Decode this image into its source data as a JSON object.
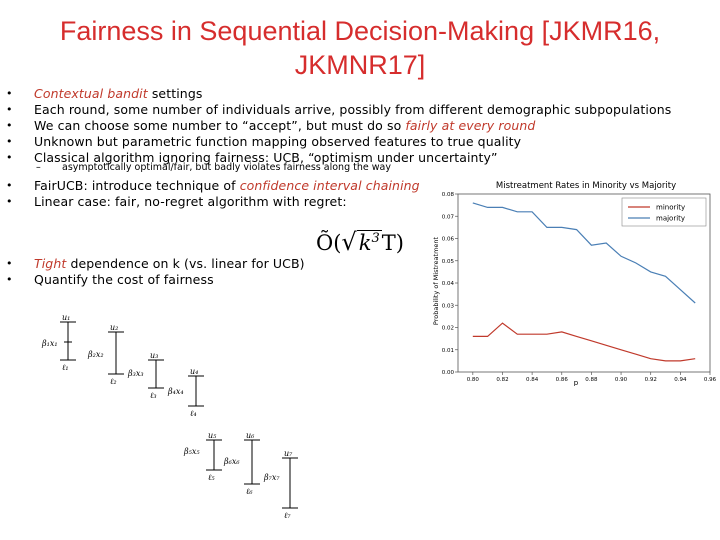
{
  "slide": {
    "title": "Fairness in Sequential Decision-Making [JKMR16, JKMNR17]",
    "bullets": [
      {
        "pre": "",
        "red": "Contextual bandit",
        "post": " settings"
      },
      {
        "pre": "Each round, some number of individuals arrive, possibly from different demographic subpopulations",
        "red": "",
        "post": ""
      },
      {
        "pre": "We can choose some number to “accept”, but must do so ",
        "red": "fairly at every round",
        "post": ""
      },
      {
        "pre": "Unknown but parametric function mapping observed features to true quality",
        "red": "",
        "post": ""
      },
      {
        "pre": "Classical algorithm ignoring fairness: UCB, “optimism under uncertainty”",
        "red": "",
        "post": ""
      }
    ],
    "sub_bullet": "asymptotically optimal/fair, but badly violates fairness along the way",
    "bullets2": [
      {
        "pre": "FairUCB: introduce technique of ",
        "red": "confidence interval chaining",
        "post": ""
      },
      {
        "pre": "Linear case: fair, no-regret algorithm with regret:",
        "red": "",
        "post": ""
      }
    ],
    "bullets3": [
      {
        "pre": "",
        "red": "Tight",
        "post": " dependence on k (vs. linear for UCB)"
      },
      {
        "pre": "Quantify the cost of fairness",
        "red": "",
        "post": ""
      }
    ],
    "bullet_glyph": "•",
    "sub_glyph": "–",
    "formula": {
      "prefix": "Õ(",
      "base": "k",
      "exp": "3",
      "suffix": "T)"
    }
  },
  "chart_data": {
    "type": "line",
    "title": "Mistreatment Rates in Minority vs Majority",
    "xlabel": "p",
    "ylabel": "Probability of Mistreatment",
    "xlim": [
      0.79,
      0.96
    ],
    "ylim": [
      0.0,
      0.08
    ],
    "xticks": [
      0.8,
      0.82,
      0.84,
      0.86,
      0.88,
      0.9,
      0.92,
      0.94,
      0.96
    ],
    "yticks": [
      0.0,
      0.01,
      0.02,
      0.03,
      0.04,
      0.05,
      0.06,
      0.07,
      0.08
    ],
    "legend_position": "top-right",
    "series": [
      {
        "name": "minority",
        "color": "#c0392b",
        "x": [
          0.8,
          0.81,
          0.82,
          0.83,
          0.84,
          0.85,
          0.86,
          0.87,
          0.88,
          0.89,
          0.9,
          0.91,
          0.92,
          0.93,
          0.94,
          0.95
        ],
        "y": [
          0.016,
          0.016,
          0.022,
          0.017,
          0.017,
          0.017,
          0.018,
          0.016,
          0.014,
          0.012,
          0.01,
          0.008,
          0.006,
          0.005,
          0.005,
          0.006
        ]
      },
      {
        "name": "majority",
        "color": "#4a7fb5",
        "x": [
          0.8,
          0.81,
          0.82,
          0.83,
          0.84,
          0.85,
          0.86,
          0.87,
          0.88,
          0.89,
          0.9,
          0.91,
          0.92,
          0.93,
          0.94,
          0.95
        ],
        "y": [
          0.076,
          0.074,
          0.074,
          0.072,
          0.072,
          0.065,
          0.065,
          0.064,
          0.057,
          0.058,
          0.052,
          0.049,
          0.045,
          0.043,
          0.037,
          0.031
        ]
      }
    ]
  },
  "diagram": {
    "labels": [
      "u₁",
      "β₁x₁",
      "ℓ₁",
      "u₂",
      "β₂x₂",
      "ℓ₂",
      "u₃",
      "β₃x₃",
      "ℓ₃",
      "u₄",
      "β₄x₄",
      "ℓ₄",
      "u₅",
      "β₅x₅",
      "ℓ₅",
      "u₆",
      "β₆x₆",
      "ℓ₆",
      "u₇",
      "β₇x₇",
      "ℓ₇"
    ]
  }
}
